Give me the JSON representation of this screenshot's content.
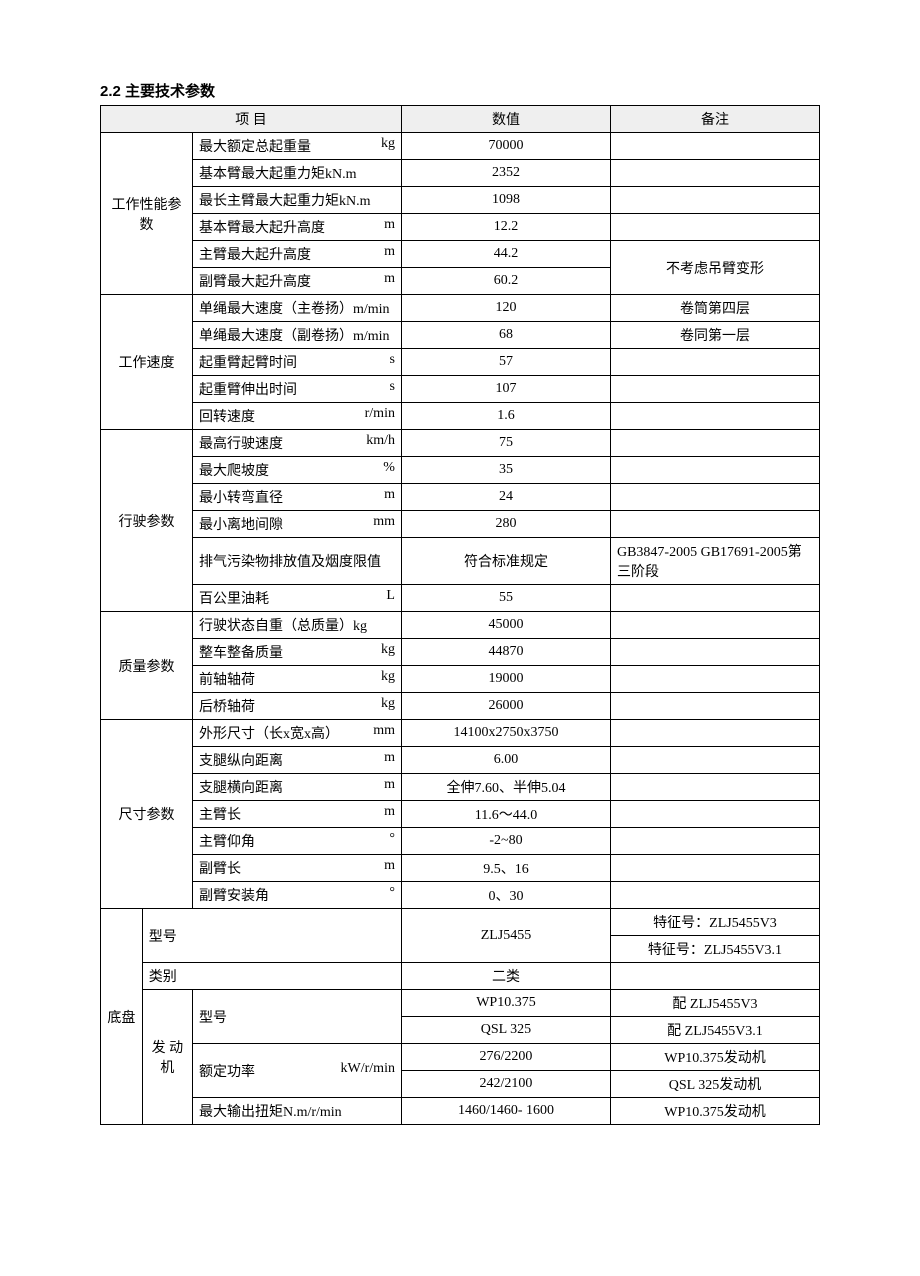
{
  "heading": "2.2 主要技术参数",
  "headers": {
    "item": "项    目",
    "value": "数值",
    "note": "备注"
  },
  "groups": [
    {
      "cat": "工作性能参数",
      "rows": [
        {
          "name": "最大额定总起重量",
          "unit": "kg",
          "value": "70000",
          "note": ""
        },
        {
          "name": "基本臂最大起重力矩kN.m",
          "unit": "",
          "value": "2352",
          "note": ""
        },
        {
          "name": "最长主臂最大起重力矩kN.m",
          "unit": "",
          "value": "1098",
          "note": ""
        },
        {
          "name": "基本臂最大起升高度",
          "unit": "m",
          "value": "12.2",
          "note": ""
        },
        {
          "name": "主臂最大起升高度",
          "unit": "m",
          "value": "44.2",
          "note_merge": "不考虑吊臂变形"
        },
        {
          "name": "副臂最大起升高度",
          "unit": "m",
          "value": "60.2"
        }
      ]
    },
    {
      "cat": "工作速度",
      "rows": [
        {
          "name": "单绳最大速度（主卷扬）m/min",
          "unit": "",
          "value": "120",
          "note": "卷筒第四层"
        },
        {
          "name": "单绳最大速度（副卷扬）m/min",
          "unit": "",
          "value": "68",
          "note": "卷同第一层"
        },
        {
          "name": "起重臂起臂时间",
          "unit": "s",
          "value": "57",
          "note": ""
        },
        {
          "name": "起重臂伸出时间",
          "unit": "s",
          "value": "107",
          "note": ""
        },
        {
          "name": "回转速度",
          "unit": "r/min",
          "value": "1.6",
          "note": ""
        }
      ]
    },
    {
      "cat": "行驶参数",
      "rows": [
        {
          "name": "最高行驶速度",
          "unit": "km/h",
          "value": "75",
          "note": ""
        },
        {
          "name": "最大爬坡度",
          "unit": "%",
          "value": "35",
          "note": ""
        },
        {
          "name": "最小转弯直径",
          "unit": "m",
          "value": "24",
          "note": ""
        },
        {
          "name": "最小离地间隙",
          "unit": "mm",
          "value": "280",
          "note": ""
        },
        {
          "name": "排气污染物排放值及烟度限值",
          "unit": "",
          "value": "符合标准规定",
          "note": "GB3847-2005 GB17691-2005第三阶段",
          "note_align": "left"
        },
        {
          "name": "百公里油耗",
          "unit": "L",
          "value": "55",
          "note": ""
        }
      ]
    },
    {
      "cat": "质量参数",
      "rows": [
        {
          "name": "行驶状态自重（总质量）kg",
          "unit": "",
          "value": "45000",
          "note": ""
        },
        {
          "name": "整车整备质量",
          "unit": "kg",
          "value": "44870",
          "note": ""
        },
        {
          "name": "前轴轴荷",
          "unit": "kg",
          "value": "19000",
          "note": ""
        },
        {
          "name": "后桥轴荷",
          "unit": "kg",
          "value": "26000",
          "note": ""
        }
      ]
    },
    {
      "cat": "尺寸参数",
      "rows": [
        {
          "name": "外形尺寸（长x宽x高）",
          "unit": "mm",
          "value": "14100x2750x3750",
          "note": ""
        },
        {
          "name": "支腿纵向距离",
          "unit": "m",
          "value": "6.00",
          "note": ""
        },
        {
          "name": "支腿横向距离",
          "unit": "m",
          "value": "全伸7.60、半伸5.04",
          "note": ""
        },
        {
          "name": "主臂长",
          "unit": "m",
          "value": "11.6〜44.0",
          "note": ""
        },
        {
          "name": "主臂仰角",
          "unit": "°",
          "value": "-2~80",
          "note": ""
        },
        {
          "name": "副臂长",
          "unit": "m",
          "value": "9.5、16",
          "note": ""
        },
        {
          "name": "副臂安装角",
          "unit": "°",
          "value": "0、30",
          "note": ""
        }
      ]
    }
  ],
  "chassis": {
    "cat": "底盘",
    "model_label": "型号",
    "model_value": "ZLJ5455",
    "model_notes": [
      "特征号：ZLJ5455V3",
      "特征号：ZLJ5455V3.1"
    ],
    "class_label": "类别",
    "class_value": "二类",
    "engine_label": "发 动机",
    "engine_model_label": "型号",
    "engine_models": [
      {
        "value": "WP10.375",
        "note": "配  ZLJ5455V3"
      },
      {
        "value": "QSL 325",
        "note": "配  ZLJ5455V3.1"
      }
    ],
    "power_label": "额定功率",
    "power_unit": "kW/r/min",
    "powers": [
      {
        "value": "276/2200",
        "note": "WP10.375发动机"
      },
      {
        "value": "242/2100",
        "note": "QSL 325发动机"
      }
    ],
    "torque_label": "最大输出扭矩N.m/r/min",
    "torque": {
      "value": "1460/1460- 1600",
      "note": "WP10.375发动机"
    }
  }
}
